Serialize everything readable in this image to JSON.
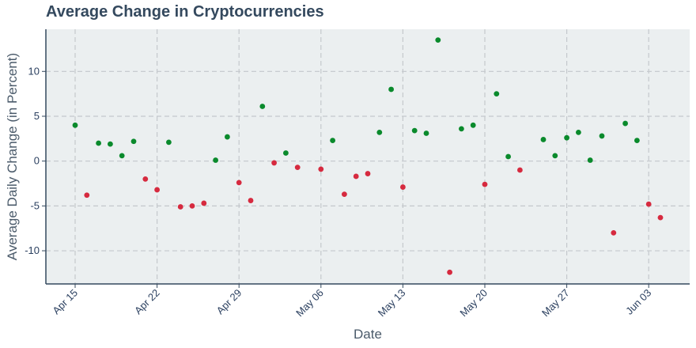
{
  "chart_data": {
    "type": "scatter",
    "title": "Average Change in Cryptocurrencies",
    "xlabel": "Date",
    "ylabel": "Average Daily Change (in Percent)",
    "x_ticks": [
      "Apr 15",
      "Apr 22",
      "Apr 29",
      "May 06",
      "May 13",
      "May 20",
      "May 27",
      "Jun 03"
    ],
    "y_ticks": [
      10,
      5,
      0,
      -5,
      -10
    ],
    "xlim": [
      "2024-04-15",
      "2024-06-04"
    ],
    "ylim": [
      -13.7,
      14.7
    ],
    "grid": true,
    "colors": {
      "positive": "#0a8a2c",
      "negative": "#d62a3f",
      "plot_bg": "#ebeff0",
      "grid": "#c4c8cc",
      "axis": "#34495e"
    },
    "x": [
      "2024-04-15",
      "2024-04-16",
      "2024-04-17",
      "2024-04-18",
      "2024-04-19",
      "2024-04-20",
      "2024-04-21",
      "2024-04-22",
      "2024-04-23",
      "2024-04-24",
      "2024-04-25",
      "2024-04-26",
      "2024-04-27",
      "2024-04-28",
      "2024-04-29",
      "2024-04-30",
      "2024-05-01",
      "2024-05-02",
      "2024-05-03",
      "2024-05-04",
      "2024-05-06",
      "2024-05-07",
      "2024-05-08",
      "2024-05-09",
      "2024-05-10",
      "2024-05-11",
      "2024-05-12",
      "2024-05-13",
      "2024-05-14",
      "2024-05-15",
      "2024-05-16",
      "2024-05-17",
      "2024-05-18",
      "2024-05-19",
      "2024-05-20",
      "2024-05-21",
      "2024-05-22",
      "2024-05-23",
      "2024-05-25",
      "2024-05-26",
      "2024-05-27",
      "2024-05-28",
      "2024-05-29",
      "2024-05-30",
      "2024-05-31",
      "2024-06-01",
      "2024-06-02",
      "2024-06-03",
      "2024-06-04"
    ],
    "y": [
      4.0,
      -3.8,
      2.0,
      1.9,
      0.6,
      2.2,
      -2.0,
      -3.2,
      2.1,
      -5.1,
      -5.0,
      -4.7,
      0.1,
      2.7,
      -2.4,
      -4.4,
      6.1,
      -0.2,
      0.9,
      -0.7,
      -0.9,
      2.3,
      -3.7,
      -1.7,
      -1.4,
      3.2,
      8.0,
      -2.9,
      3.4,
      3.1,
      13.5,
      -12.4,
      3.6,
      4.0,
      -2.6,
      7.5,
      0.5,
      -1.0,
      2.4,
      0.6,
      2.6,
      3.2,
      0.1,
      2.8,
      -8.0,
      4.2,
      2.3,
      -4.8,
      -6.3
    ]
  }
}
